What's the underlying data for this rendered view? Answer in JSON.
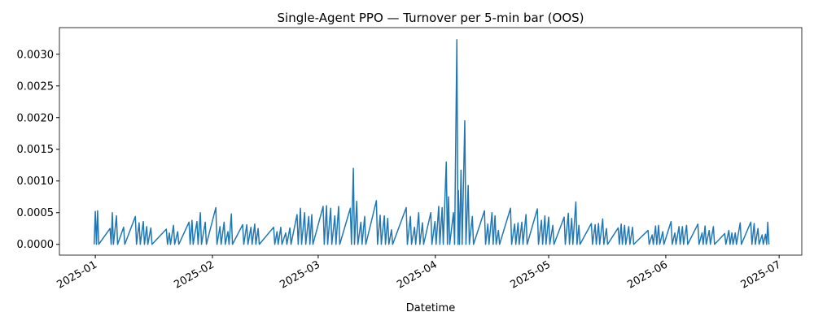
{
  "chart_data": {
    "type": "line",
    "title": "Single-Agent PPO — Turnover per 5-min bar (OOS)",
    "xlabel": "Datetime",
    "xlim": [
      -9.5,
      187
    ],
    "ylim": [
      -0.00017,
      0.00342
    ],
    "xticks": [
      {
        "value": 0,
        "label": "2025-01"
      },
      {
        "value": 31,
        "label": "2025-02"
      },
      {
        "value": 59,
        "label": "2025-03"
      },
      {
        "value": 90,
        "label": "2025-04"
      },
      {
        "value": 120,
        "label": "2025-05"
      },
      {
        "value": 151,
        "label": "2025-06"
      },
      {
        "value": 181,
        "label": "2025-07"
      }
    ],
    "yticks": [
      {
        "value": 0,
        "label": "0.0000"
      },
      {
        "value": 0.0005,
        "label": "0.0005"
      },
      {
        "value": 0.001,
        "label": "0.0010"
      },
      {
        "value": 0.0015,
        "label": "0.0015"
      },
      {
        "value": 0.002,
        "label": "0.0020"
      },
      {
        "value": 0.0025,
        "label": "0.0025"
      },
      {
        "value": 0.003,
        "label": "0.0030"
      }
    ],
    "series": [
      {
        "color": "#1f77b4",
        "x": [
          -0.3,
          0,
          0.3,
          0.6,
          0.9,
          3.9,
          4.2,
          4.5,
          4.8,
          5.6,
          5.9,
          7.5,
          7.8,
          10.6,
          10.9,
          11.6,
          11.9,
          12.7,
          13,
          13.6,
          13.9,
          14.7,
          15,
          18.8,
          19.1,
          19.6,
          19.9,
          20.7,
          21,
          21.8,
          22.1,
          24.8,
          25.1,
          25.6,
          25.9,
          26.9,
          27.2,
          27.8,
          28.1,
          29.1,
          29.4,
          31.9,
          32.2,
          33,
          33.3,
          34.1,
          34.4,
          35.1,
          35.4,
          36,
          36.3,
          39,
          39.3,
          40.1,
          40.4,
          41.2,
          41.5,
          42.2,
          42.5,
          43.1,
          43.4,
          47.2,
          47.5,
          48.1,
          48.4,
          49.1,
          49.4,
          50.4,
          50.7,
          51.5,
          51.8,
          53.4,
          53.7,
          54.3,
          54.6,
          55.4,
          55.7,
          56.5,
          56.8,
          57.3,
          57.6,
          60.3,
          60.6,
          61.2,
          61.5,
          62.3,
          62.6,
          63.4,
          63.7,
          64.4,
          64.7,
          67.5,
          67.8,
          68.3,
          68.6,
          69.2,
          69.5,
          70.3,
          70.6,
          71.3,
          71.6,
          74.4,
          74.7,
          75.4,
          75.7,
          76.5,
          76.8,
          77.4,
          77.7,
          78.4,
          78.7,
          82.3,
          82.6,
          83.4,
          83.7,
          84.5,
          84.8,
          85.6,
          85.9,
          86.6,
          86.9,
          88.8,
          89.1,
          89.9,
          90.2,
          90.9,
          91.2,
          91.8,
          92.1,
          92.9,
          93.2,
          93.5,
          93.8,
          94.8,
          95.1,
          95.7,
          96,
          96.1,
          96.4,
          96.8,
          97.1,
          97.8,
          98.1,
          98.7,
          99,
          99.8,
          100.1,
          103,
          103.3,
          103.9,
          104.2,
          105,
          105.3,
          105.8,
          106.1,
          106.7,
          107,
          109.9,
          110.2,
          111,
          111.3,
          111.9,
          112.2,
          112.9,
          113.2,
          114,
          114.3,
          117,
          117.3,
          118.1,
          118.4,
          119,
          119.3,
          120,
          120.3,
          121.1,
          121.4,
          124.1,
          124.4,
          125.2,
          125.5,
          126.1,
          126.4,
          127.2,
          127.5,
          128,
          128.3,
          131.3,
          131.6,
          132.3,
          132.6,
          133.2,
          133.5,
          134.3,
          134.6,
          135.3,
          135.6,
          138.4,
          138.7,
          139.2,
          139.5,
          140.1,
          140.4,
          141.2,
          141.5,
          142.2,
          142.5,
          146.3,
          146.6,
          147.4,
          147.7,
          148.3,
          148.6,
          149.1,
          149.4,
          150.2,
          150.5,
          152.4,
          152.7,
          153.4,
          153.7,
          154.5,
          154.8,
          155.4,
          155.7,
          156.5,
          156.8,
          159.5,
          159.8,
          160.6,
          160.9,
          161.4,
          161.7,
          162.5,
          162.8,
          163.6,
          163.9,
          166.6,
          166.9,
          167.7,
          168,
          168.5,
          168.8,
          169.4,
          169.7,
          170.7,
          171,
          173.5,
          173.8,
          174.4,
          174.7,
          175.4,
          175.7,
          176.5,
          176.8,
          177.4,
          177.7,
          178,
          178.3
        ],
        "values": [
          0,
          0.00052,
          0,
          0.00053,
          0,
          0.00025,
          0,
          0.0005,
          0,
          0.00045,
          0,
          0.00027,
          0,
          0.00044,
          0,
          0.00034,
          0,
          0.00036,
          0,
          0.00028,
          0,
          0.00026,
          0,
          0.00024,
          0,
          0.00018,
          0,
          0.0003,
          0,
          0.0002,
          0,
          0.00035,
          0,
          0.00038,
          0,
          0.00036,
          0,
          0.0005,
          0,
          0.00035,
          0,
          0.00058,
          0,
          0.00028,
          0,
          0.00035,
          0,
          0.0002,
          0,
          0.00048,
          0,
          0.00031,
          0,
          0.00031,
          0,
          0.00027,
          0,
          0.00032,
          0,
          0.00025,
          0,
          0.00027,
          0,
          0.0002,
          0,
          0.00027,
          0,
          0.00018,
          0,
          0.00026,
          0,
          0.00047,
          0,
          0.00057,
          0,
          0.0005,
          0,
          0.00044,
          0,
          0.00047,
          0,
          0.0006,
          0,
          0.00061,
          0,
          0.00057,
          0,
          0.00045,
          0,
          0.0006,
          0,
          0.00057,
          0,
          0.0012,
          0,
          0.00068,
          0,
          0.00035,
          0,
          0.00044,
          0,
          0.00069,
          0,
          0.00046,
          0,
          0.00045,
          0,
          0.00041,
          0,
          0.00023,
          0,
          0.00058,
          0,
          0.00044,
          0,
          0.00027,
          0,
          0.0005,
          0,
          0.00034,
          0,
          0.0005,
          0,
          0.00036,
          0,
          0.0006,
          0,
          0.00058,
          0,
          0.0013,
          0,
          0.00075,
          0,
          0.0005,
          0,
          0.00323,
          0,
          0.00085,
          0,
          0.00117,
          0,
          0.00195,
          0,
          0.00093,
          0,
          0.00044,
          0,
          0.00053,
          0,
          0.00032,
          0,
          0.0005,
          0,
          0.00045,
          0,
          0.00022,
          0,
          0.00057,
          0,
          0.00032,
          0,
          0.00034,
          0,
          0.00035,
          0,
          0.00047,
          0,
          0.00056,
          0,
          0.00038,
          0,
          0.00045,
          0,
          0.00043,
          0,
          0.0003,
          0,
          0.00043,
          0,
          0.00049,
          0,
          0.00041,
          0,
          0.00067,
          0,
          0.0003,
          0,
          0.00033,
          0,
          0.00031,
          0,
          0.00033,
          0,
          0.0004,
          0,
          0.00025,
          0,
          0.00026,
          0,
          0.00032,
          0,
          0.0003,
          0,
          0.00028,
          0,
          0.00027,
          0,
          0.00022,
          0,
          0.00015,
          0,
          0.00029,
          0,
          0.0003,
          0,
          0.0002,
          0,
          0.00036,
          0,
          0.00018,
          0,
          0.00028,
          0,
          0.00028,
          0,
          0.0003,
          0,
          0.00032,
          0,
          0.00018,
          0,
          0.00029,
          0,
          0.00022,
          0,
          0.00028,
          0,
          0.00017,
          0,
          0.00022,
          0,
          0.00018,
          0,
          0.00018,
          0,
          0.00034,
          0,
          0.00035,
          0,
          0.00033,
          0,
          0.00025,
          0,
          0.00015,
          0,
          0.00016,
          0,
          0.00035,
          0
        ]
      }
    ]
  }
}
